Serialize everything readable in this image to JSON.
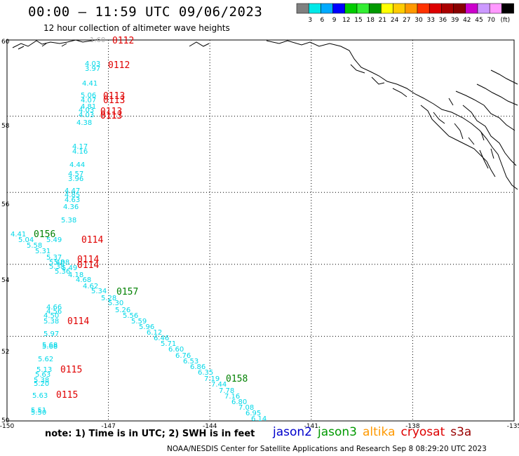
{
  "title": "00:00 – 11:59 UTC 09/06/2023",
  "subtitle": "12 hour collection of altimeter wave heights",
  "colorbar": {
    "colors": [
      "#808080",
      "#00e8e8",
      "#00aaff",
      "#0000ff",
      "#00cc00",
      "#33ee33",
      "#009900",
      "#ffff00",
      "#ffcc00",
      "#ff9900",
      "#ff3300",
      "#dd0000",
      "#aa0000",
      "#880000",
      "#cc00cc",
      "#cc99ff",
      "#ff99ff",
      "#000000"
    ],
    "ticks": [
      "3",
      "6",
      "9",
      "12",
      "15",
      "18",
      "21",
      "24",
      "27",
      "30",
      "33",
      "36",
      "39",
      "42",
      "45",
      "70"
    ],
    "unit": "(ft)"
  },
  "map": {
    "lon_range": [
      -150,
      -135
    ],
    "lat_range": [
      50,
      60
    ],
    "lon_ticks": [
      "-150",
      "-147",
      "-144",
      "-141",
      "-138",
      "-135"
    ],
    "lat_ticks": [
      "60",
      "58",
      "56",
      "54",
      "52",
      "50"
    ],
    "grid_color": "#000000",
    "wave_color": "#00d8e8"
  },
  "pass_times": [
    {
      "text": "0112",
      "color": "#e00000",
      "id": "t1"
    },
    {
      "text": "0112",
      "color": "#e00000",
      "id": "t2"
    },
    {
      "text": "0113",
      "color": "#e00000",
      "id": "t3"
    },
    {
      "text": "0113",
      "color": "#e00000",
      "id": "t4"
    },
    {
      "text": "0113",
      "color": "#e00000",
      "id": "t5"
    },
    {
      "text": "0113",
      "color": "#e00000",
      "id": "t6"
    },
    {
      "text": "0113",
      "color": "#e00000",
      "id": "t7"
    },
    {
      "text": "0156",
      "color": "#008000",
      "id": "t8"
    },
    {
      "text": "0114",
      "color": "#e00000",
      "id": "t9"
    },
    {
      "text": "0114",
      "color": "#e00000",
      "id": "t10"
    },
    {
      "text": "0114",
      "color": "#e00000",
      "id": "t11"
    },
    {
      "text": "0157",
      "color": "#008000",
      "id": "t12"
    },
    {
      "text": "0114",
      "color": "#e00000",
      "id": "t13"
    },
    {
      "text": "0115",
      "color": "#e00000",
      "id": "t14"
    },
    {
      "text": "0158",
      "color": "#008000",
      "id": "t15"
    },
    {
      "text": "0115",
      "color": "#e00000",
      "id": "t16"
    }
  ],
  "wave_heights": [
    {
      "v": "1.60",
      "color": "#aaaaaa"
    },
    "4.03",
    "3.97",
    "4.41",
    "5.06",
    "4.07",
    "4.81",
    "4.03",
    "4.03",
    "4.38",
    "4.17",
    "4.16",
    "4.44",
    "4.57",
    "3.96",
    "4.47",
    "4.85",
    "4.63",
    "4.36",
    "5.38",
    "4.41",
    "5.04",
    "5.58",
    "5.31",
    "5.49",
    "5.37",
    "5.48",
    "5.38",
    "5.08",
    "5.49",
    "5.36",
    "4.18",
    "4.68",
    "4.62",
    "5.34",
    "5.28",
    "5.30",
    "5.26",
    "5.56",
    "5.59",
    "5.96",
    "6.12",
    "6.46",
    "5.71",
    "6.60",
    "6.76",
    "6.53",
    "6.86",
    "6.35",
    "7.19",
    "7.44",
    "7.78",
    "7.16",
    "6.80",
    "7.08",
    "6.95",
    "6.14",
    "4.66",
    "4.56",
    "4.50",
    "5.38",
    "5.97",
    "5.68",
    "5.68",
    "5.62",
    "5.13",
    "5.63",
    "5.20",
    "5.38",
    "5.63",
    "5.51",
    "5.50"
  ],
  "legend": {
    "note": "note:  1) Time is in UTC;  2) SWH is in feet",
    "satellites": [
      {
        "name": "jason2",
        "color": "#0000cc"
      },
      {
        "name": "jason3",
        "color": "#009900"
      },
      {
        "name": "altika",
        "color": "#ff9900"
      },
      {
        "name": "cryosat",
        "color": "#dd0000"
      },
      {
        "name": "s3a",
        "color": "#990000"
      }
    ]
  },
  "credit": "NOAA/NESDIS Center for Satellite Applications and Research    Sep  8 08:29:20 UTC 2023"
}
